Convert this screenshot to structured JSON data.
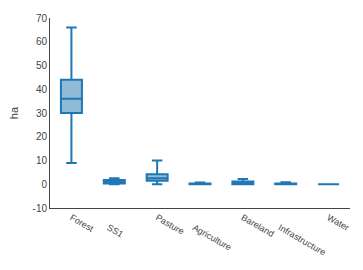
{
  "chart_data": {
    "type": "box",
    "ylabel": "ha",
    "categories": [
      "Forest",
      "SS1",
      "Pasture",
      "Agriculture",
      "Bareland",
      "Infrastructure",
      "Water"
    ],
    "median": [
      36,
      1.0,
      2.5,
      0.1,
      0.3,
      0.0,
      0.0
    ],
    "q1": [
      30,
      0.3,
      1.5,
      0.0,
      0.0,
      0.0,
      0.0
    ],
    "q3": [
      44,
      1.8,
      4.2,
      0.3,
      1.2,
      0.3,
      0.0
    ],
    "lower_whisker": [
      9,
      0.0,
      0.0,
      0.0,
      0.0,
      0.0,
      0.0
    ],
    "upper_whisker": [
      66,
      2.5,
      10.0,
      0.7,
      2.2,
      0.8,
      0.0
    ],
    "ylim": [
      -10,
      70
    ],
    "yticks": [
      -10,
      0,
      10,
      20,
      30,
      40,
      50,
      60,
      70
    ],
    "grid": false
  }
}
